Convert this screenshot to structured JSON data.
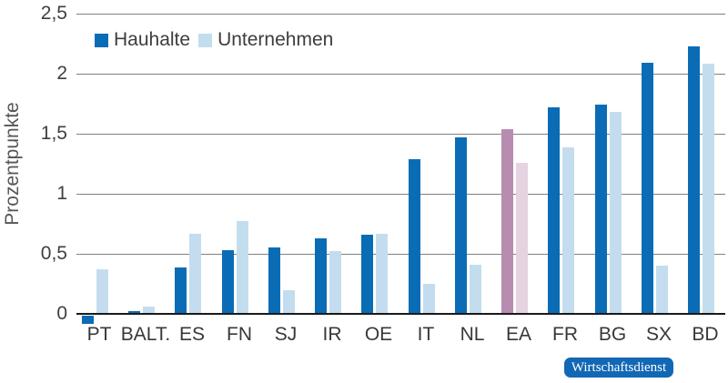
{
  "chart_data": {
    "type": "bar",
    "title": "",
    "ylabel": "Prozentpunkte",
    "xlabel": "",
    "categories": [
      "PT",
      "BALT.",
      "ES",
      "FN",
      "SJ",
      "IR",
      "OE",
      "IT",
      "NL",
      "EA",
      "FR",
      "BG",
      "SX",
      "BD"
    ],
    "series": [
      {
        "name": "Hauhalte",
        "values": [
          -0.07,
          0.02,
          0.39,
          0.53,
          0.55,
          0.63,
          0.66,
          1.29,
          1.47,
          1.54,
          1.72,
          1.74,
          2.09,
          2.23
        ]
      },
      {
        "name": "Unternehmen",
        "values": [
          0.37,
          0.06,
          0.67,
          0.77,
          0.2,
          0.52,
          0.67,
          0.25,
          0.41,
          1.26,
          1.39,
          1.68,
          0.4,
          2.08
        ]
      }
    ],
    "yticks": [
      "0",
      "0,5",
      "1",
      "1,5",
      "2",
      "2,5"
    ],
    "ytick_values": [
      0,
      0.5,
      1,
      1.5,
      2,
      2.5
    ],
    "ylim": [
      -0.15,
      2.5
    ],
    "grid": true,
    "legend_position": "top-left",
    "highlight_category": "EA"
  },
  "colors": {
    "hauhalte": "#0a6cb5",
    "unternehmen": "#c3ddef",
    "hauhalte_highlight": "#b78cb0",
    "unternehmen_highlight": "#e5d3e2",
    "gridline": "#808080",
    "axis": "#1a1a1a",
    "badge_bg": "#1268b4",
    "badge_text": "#ffffff"
  },
  "badge": {
    "label": "Wirtschaftsdienst"
  }
}
